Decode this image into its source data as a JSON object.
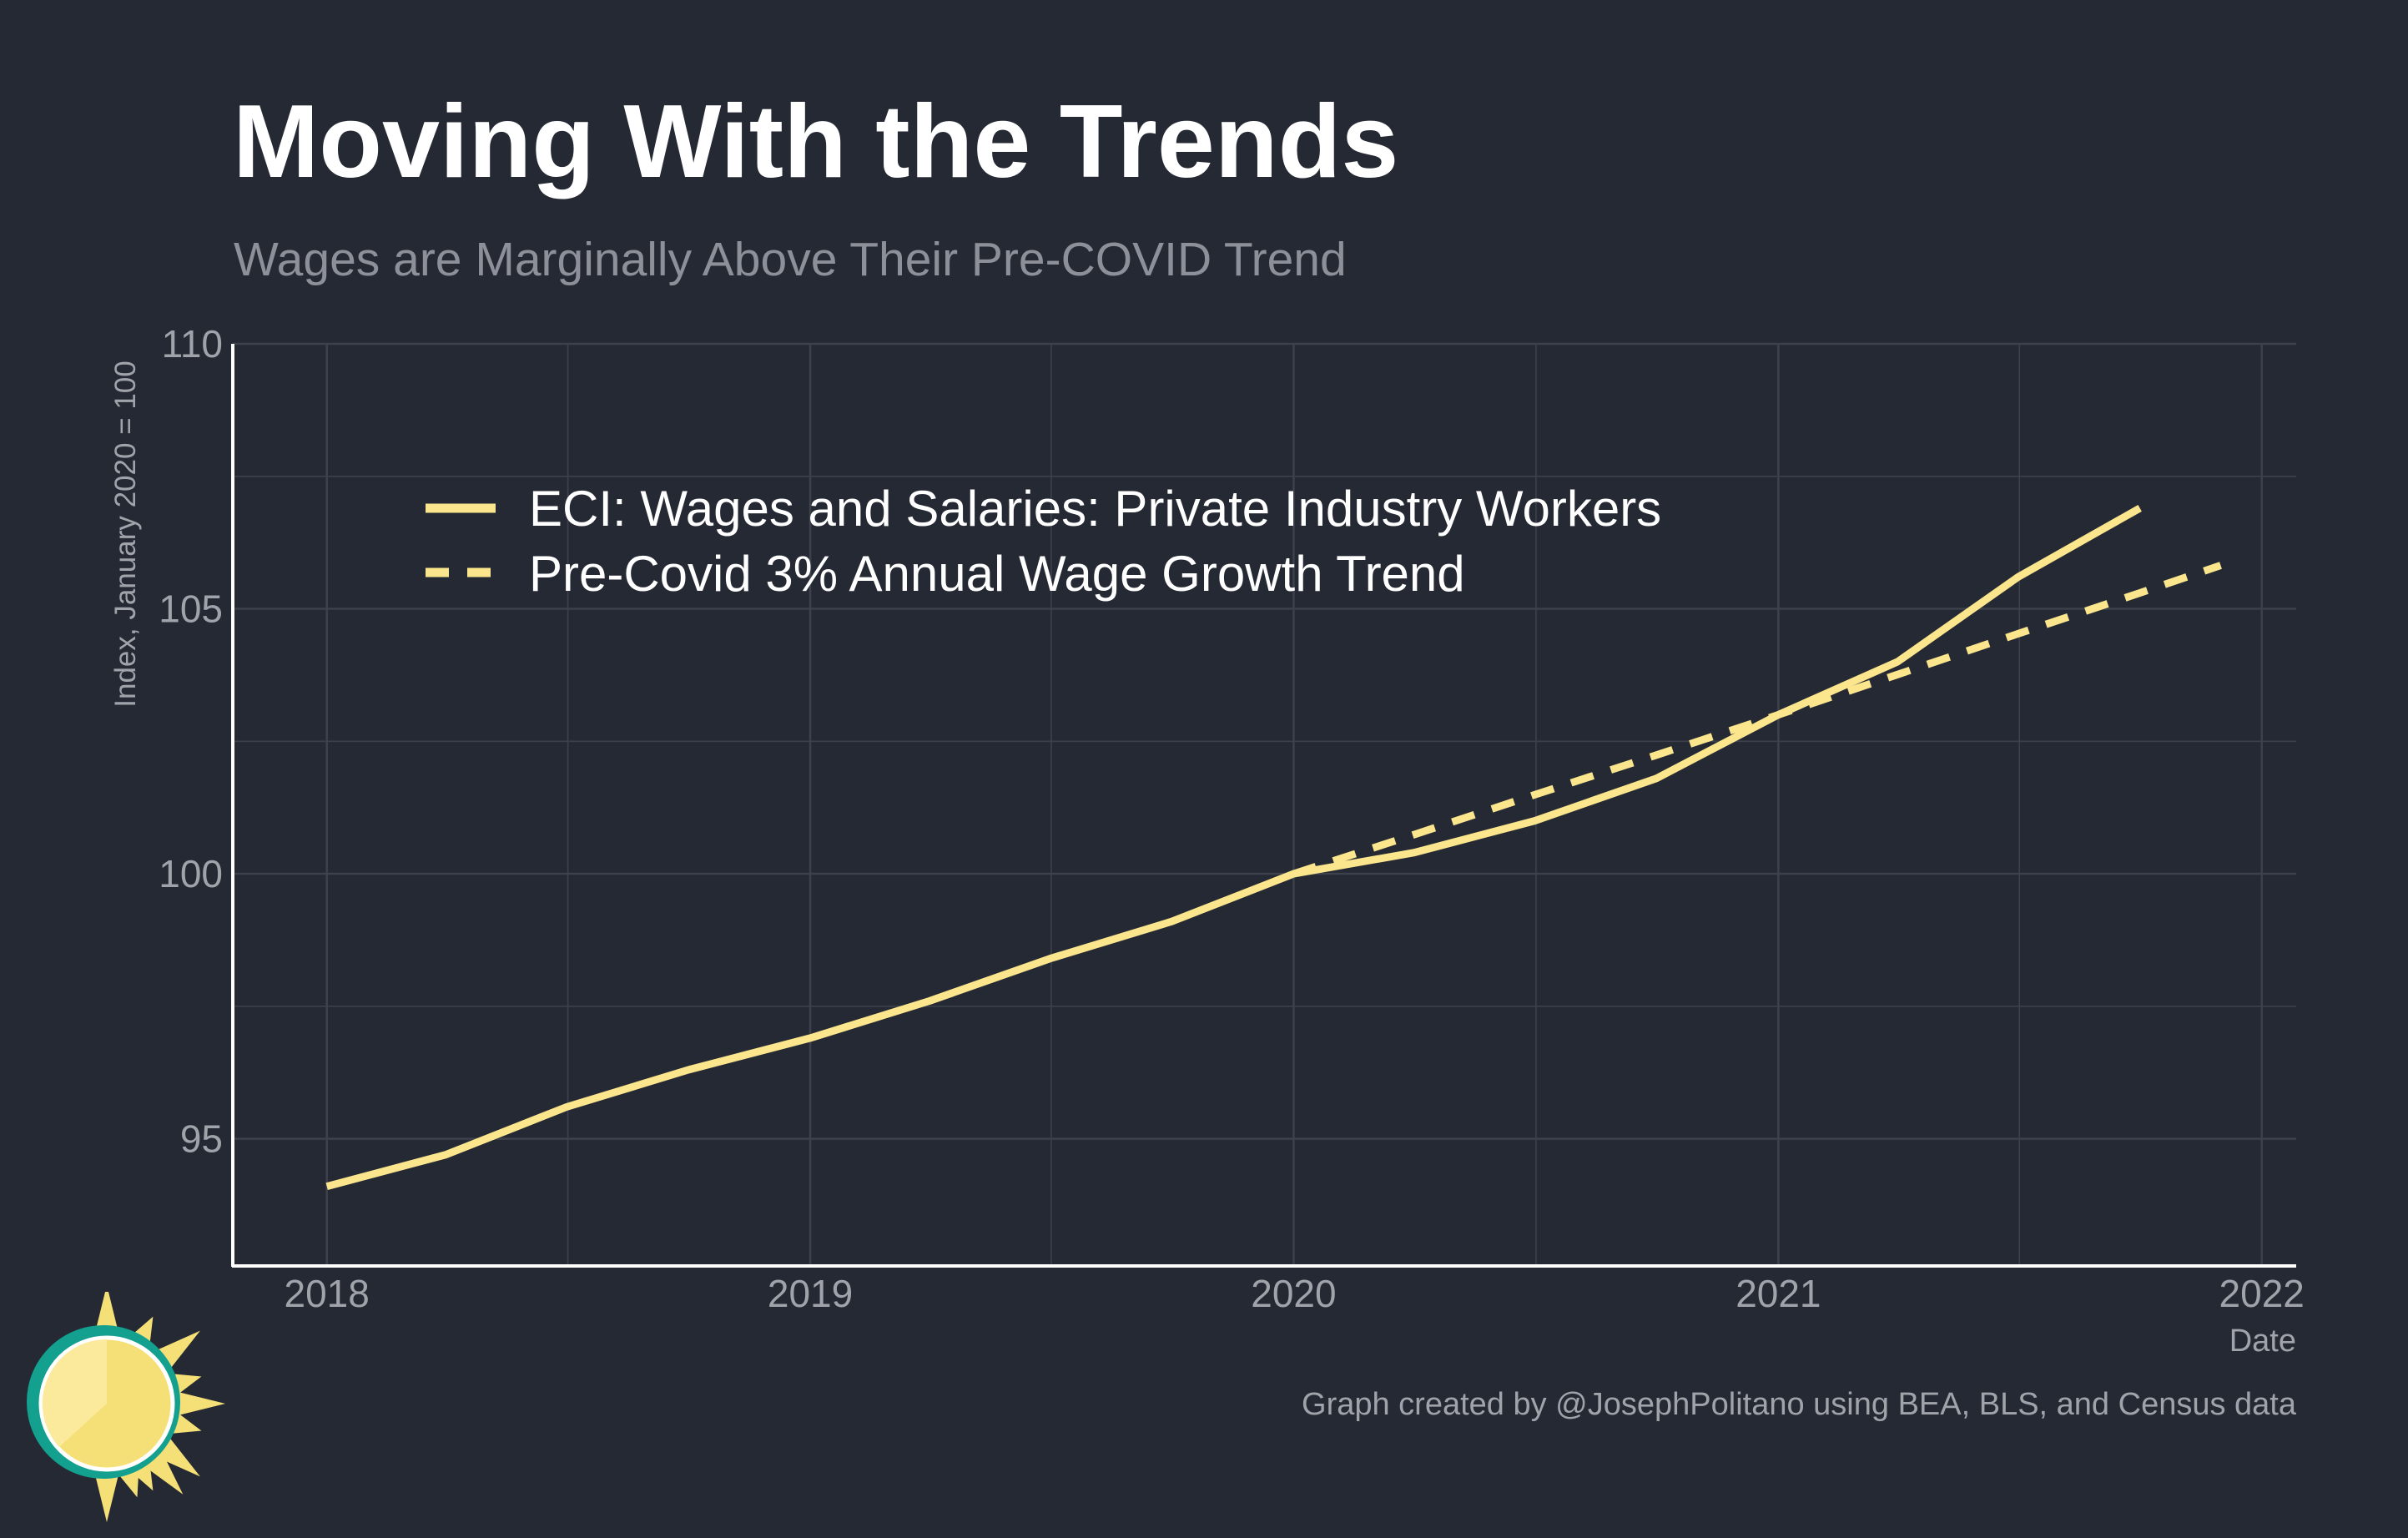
{
  "title": "Moving With the Trends",
  "subtitle": "Wages are Marginally Above Their Pre-COVID Trend",
  "caption": "Graph created by @JosephPolitano using BEA, BLS, and Census data",
  "colors": {
    "background": "#252933",
    "line": "#fbe68e",
    "grid": "#3d414b",
    "axis": "#ffffff",
    "logo_teal": "#13a08e",
    "logo_sun": "#f5df77"
  },
  "chart_data": {
    "type": "line",
    "title": "Moving With the Trends",
    "subtitle": "Wages are Marginally Above Their Pre-COVID Trend",
    "xlabel": "Date",
    "ylabel": "Index, January 2020 = 100",
    "xlim": [
      "2017-10-22",
      "2022-01-27"
    ],
    "ylim": [
      92.6,
      110
    ],
    "x_ticks": [
      "2018",
      "2019",
      "2020",
      "2021",
      "2022"
    ],
    "y_ticks": [
      "95",
      "100",
      "105",
      "110"
    ],
    "grid": true,
    "legend_position": "top-left",
    "series": [
      {
        "name": "ECI: Wages and Salaries: Private Industry Workers",
        "style": "solid",
        "x": [
          "2018-01-01",
          "2018-04-01",
          "2018-07-01",
          "2018-10-01",
          "2019-01-01",
          "2019-04-01",
          "2019-07-01",
          "2019-10-01",
          "2020-01-01",
          "2020-04-01",
          "2020-07-01",
          "2020-10-01",
          "2021-01-01",
          "2021-04-01",
          "2021-07-01",
          "2021-10-01"
        ],
        "y": [
          94.1,
          94.7,
          95.6,
          96.3,
          96.9,
          97.6,
          98.4,
          99.1,
          100.0,
          100.4,
          101.0,
          101.8,
          103.0,
          104.0,
          105.6,
          106.9
        ]
      },
      {
        "name": "Pre-Covid 3% Annual Wage Growth Trend",
        "style": "dashed",
        "x": [
          "2020-01-01",
          "2020-04-01",
          "2020-07-01",
          "2020-10-01",
          "2021-01-01",
          "2021-04-01",
          "2021-07-01",
          "2021-10-01",
          "2021-12-01"
        ],
        "y": [
          100.0,
          100.74,
          101.49,
          102.24,
          103.0,
          103.76,
          104.53,
          105.3,
          105.82
        ]
      }
    ]
  }
}
